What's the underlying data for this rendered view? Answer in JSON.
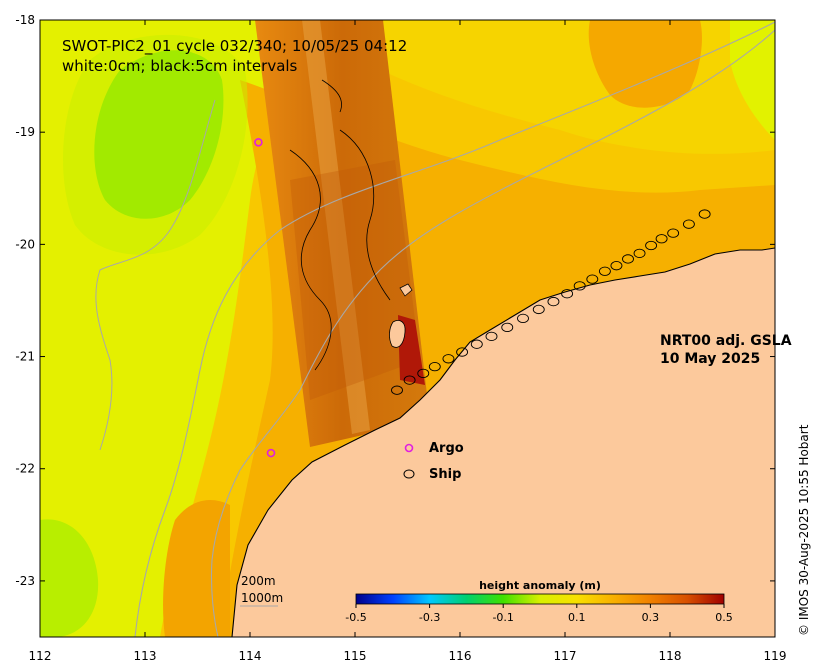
{
  "title": {
    "line1": "SWOT-PIC2_01 cycle 032/340; 10/05/25 04:12",
    "line2": "white:0cm; black:5cm intervals"
  },
  "product": {
    "line1": "NRT00 adj. GSLA",
    "line2": "10 May 2025"
  },
  "legend": {
    "argo_label": "Argo",
    "argo_color": "#e020e0",
    "ship_label": "Ship",
    "ship_color": "#000000"
  },
  "contour_labels": {
    "shallow": "200m",
    "deep": "1000m"
  },
  "colorbar": {
    "title": "height anomaly (m)",
    "ticks": [
      "-0.5",
      "-0.3",
      "-0.1",
      "0.1",
      "0.3",
      "0.5"
    ],
    "colors": [
      "#00008b",
      "#0040ff",
      "#00c8ff",
      "#00d070",
      "#40e000",
      "#d8f000",
      "#f8e000",
      "#f8b000",
      "#f08000",
      "#d85000",
      "#a00000"
    ]
  },
  "credit": "© IMOS 30-Aug-2025 10:55 Hobart",
  "axes": {
    "x_ticks": [
      "112",
      "113",
      "114",
      "115",
      "116",
      "117",
      "118",
      "119"
    ],
    "y_ticks": [
      "-18",
      "-19",
      "-20",
      "-21",
      "-22",
      "-23"
    ]
  },
  "colors": {
    "land": "#fcc99c",
    "sea_base": "#f8c000",
    "high_anomaly": "#f0a000",
    "low_anomaly": "#70e000",
    "swath": "#d0720a",
    "bathymetry": "#a8a8a8"
  },
  "ship_track": [
    [
      118.33,
      -19.73
    ],
    [
      118.18,
      -19.82
    ],
    [
      118.03,
      -19.9
    ],
    [
      117.92,
      -19.95
    ],
    [
      117.82,
      -20.01
    ],
    [
      117.71,
      -20.08
    ],
    [
      117.6,
      -20.13
    ],
    [
      117.49,
      -20.19
    ],
    [
      117.38,
      -20.24
    ],
    [
      117.26,
      -20.31
    ],
    [
      117.14,
      -20.37
    ],
    [
      117.02,
      -20.44
    ],
    [
      116.89,
      -20.51
    ],
    [
      116.75,
      -20.58
    ],
    [
      116.6,
      -20.66
    ],
    [
      116.45,
      -20.74
    ],
    [
      116.3,
      -20.82
    ],
    [
      116.16,
      -20.89
    ],
    [
      116.02,
      -20.96
    ],
    [
      115.89,
      -21.02
    ],
    [
      115.76,
      -21.09
    ],
    [
      115.65,
      -21.15
    ],
    [
      115.52,
      -21.21
    ],
    [
      115.4,
      -21.3
    ]
  ],
  "argo_floats": [
    [
      114.08,
      -19.09
    ],
    [
      114.2,
      -21.86
    ]
  ]
}
